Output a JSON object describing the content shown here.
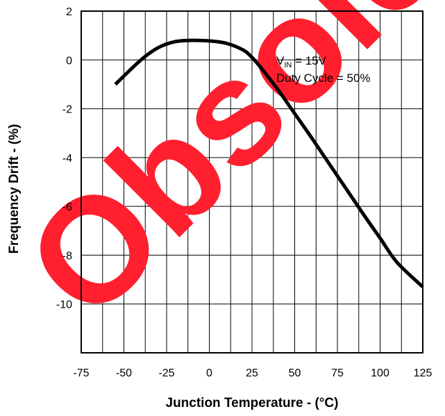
{
  "chart_data": {
    "type": "line",
    "xlabel": "Junction Temperature - (°C)",
    "ylabel": "Frequency Drift - (%)",
    "xlim": [
      -75,
      125
    ],
    "ylim": [
      -12,
      2
    ],
    "x_ticks": [
      "-75",
      "-50",
      "-25",
      "0",
      "25",
      "50",
      "75",
      "100",
      "125"
    ],
    "y_ticks": [
      "2",
      "0",
      "-2",
      "-4",
      "-6",
      "-8",
      "-10"
    ],
    "grid": true,
    "series": [
      {
        "x": [
          -55,
          -40,
          -30,
          -20,
          -10,
          0,
          10,
          20,
          25,
          30,
          40,
          50,
          60,
          75,
          90,
          100,
          110,
          125
        ],
        "y": [
          -1.0,
          0.0,
          0.5,
          0.75,
          0.8,
          0.78,
          0.68,
          0.4,
          0.1,
          -0.3,
          -1.2,
          -2.2,
          -3.2,
          -4.75,
          -6.3,
          -7.3,
          -8.3,
          -9.3
        ]
      }
    ],
    "annotation": {
      "line1_prefix": "V",
      "line1_subscript": "IN",
      "line1_suffix": " = 15V",
      "line2": "Duty Cycle = 50%"
    },
    "watermark": "Obsolete",
    "colors": {
      "curve": "#000000",
      "grid": "#000000",
      "watermark": "#ff1f2e"
    }
  }
}
